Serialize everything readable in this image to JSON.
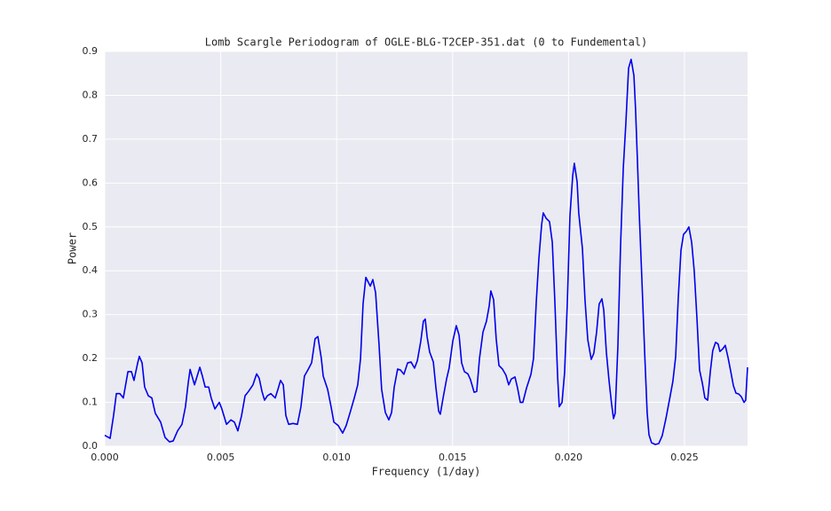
{
  "chart_data": {
    "type": "line",
    "title": "Lomb Scargle Periodogram of OGLE-BLG-T2CEP-351.dat (0 to Fundemental)",
    "xlabel": "Frequency (1/day)",
    "ylabel": "Power",
    "color": "#0000ee",
    "grid": true,
    "xlim": [
      0,
      0.02772
    ],
    "ylim": [
      0,
      0.9
    ],
    "xticks": [
      {
        "value": 0,
        "label": "0.000"
      },
      {
        "value": 0.005,
        "label": "0.005"
      },
      {
        "value": 0.01,
        "label": "0.010"
      },
      {
        "value": 0.015,
        "label": "0.015"
      },
      {
        "value": 0.02,
        "label": "0.020"
      },
      {
        "value": 0.025,
        "label": "0.025"
      }
    ],
    "yticks": [
      {
        "value": 0,
        "label": "0.0"
      },
      0.1,
      0.2,
      0.3,
      0.4,
      0.5,
      0.6,
      0.7,
      0.8,
      0.9
    ],
    "x": [
      0,
      0.00023,
      0.00038,
      0.0005,
      0.00065,
      0.0008,
      0.001,
      0.00115,
      0.00126,
      0.00142,
      0.00149,
      0.00161,
      0.00172,
      0.00188,
      0.00203,
      0.00218,
      0.00241,
      0.0026,
      0.00279,
      0.00295,
      0.00314,
      0.00333,
      0.00348,
      0.0036,
      0.00368,
      0.00387,
      0.0041,
      0.00421,
      0.00433,
      0.00448,
      0.00459,
      0.00475,
      0.00494,
      0.00505,
      0.00525,
      0.00544,
      0.00559,
      0.00574,
      0.0059,
      0.00605,
      0.0062,
      0.00639,
      0.00655,
      0.00666,
      0.00678,
      0.00689,
      0.00701,
      0.00716,
      0.00735,
      0.00747,
      0.00758,
      0.0077,
      0.00781,
      0.00793,
      0.00812,
      0.00831,
      0.00846,
      0.00861,
      0.00877,
      0.00892,
      0.00907,
      0.00919,
      0.00934,
      0.00942,
      0.00961,
      0.00976,
      0.00988,
      0.01007,
      0.01026,
      0.01041,
      0.01057,
      0.01076,
      0.01091,
      0.01103,
      0.01114,
      0.01126,
      0.01145,
      0.01156,
      0.01168,
      0.01183,
      0.01194,
      0.0121,
      0.01225,
      0.01237,
      0.01248,
      0.01263,
      0.01275,
      0.0129,
      0.01306,
      0.01321,
      0.01336,
      0.01348,
      0.01363,
      0.01374,
      0.01382,
      0.0139,
      0.01401,
      0.01417,
      0.01428,
      0.0144,
      0.01447,
      0.01459,
      0.01474,
      0.01485,
      0.01501,
      0.01516,
      0.01528,
      0.01539,
      0.01551,
      0.01566,
      0.01577,
      0.01593,
      0.01604,
      0.01616,
      0.01631,
      0.01646,
      0.01658,
      0.01665,
      0.01677,
      0.01688,
      0.017,
      0.01715,
      0.0173,
      0.01742,
      0.01753,
      0.01769,
      0.0178,
      0.01792,
      0.01803,
      0.01819,
      0.01838,
      0.01849,
      0.01861,
      0.01872,
      0.01884,
      0.01891,
      0.01903,
      0.01918,
      0.0193,
      0.01941,
      0.01953,
      0.0196,
      0.01972,
      0.01983,
      0.01995,
      0.02006,
      0.02018,
      0.02025,
      0.02037,
      0.02044,
      0.0206,
      0.02071,
      0.02083,
      0.02098,
      0.02109,
      0.02121,
      0.02132,
      0.02144,
      0.02152,
      0.02163,
      0.02175,
      0.02186,
      0.02194,
      0.02201,
      0.02213,
      0.02224,
      0.02236,
      0.02247,
      0.02259,
      0.0227,
      0.02282,
      0.02289,
      0.02297,
      0.02305,
      0.02316,
      0.02328,
      0.02339,
      0.02347,
      0.02358,
      0.02374,
      0.02389,
      0.02404,
      0.0242,
      0.02435,
      0.0245,
      0.02462,
      0.02473,
      0.02485,
      0.02496,
      0.02508,
      0.02519,
      0.02531,
      0.02542,
      0.02554,
      0.02565,
      0.02577,
      0.02588,
      0.026,
      0.02611,
      0.02622,
      0.02634,
      0.02645,
      0.02653,
      0.02665,
      0.02676,
      0.02688,
      0.02699,
      0.02711,
      0.02722,
      0.02734,
      0.02745,
      0.02757,
      0.02764,
      0.02772
    ],
    "values": [
      0.025,
      0.018,
      0.07,
      0.12,
      0.12,
      0.11,
      0.17,
      0.17,
      0.15,
      0.19,
      0.205,
      0.19,
      0.135,
      0.115,
      0.11,
      0.075,
      0.055,
      0.02,
      0.01,
      0.012,
      0.035,
      0.05,
      0.09,
      0.145,
      0.175,
      0.14,
      0.18,
      0.16,
      0.135,
      0.135,
      0.11,
      0.085,
      0.1,
      0.085,
      0.05,
      0.06,
      0.055,
      0.035,
      0.07,
      0.115,
      0.125,
      0.14,
      0.165,
      0.155,
      0.125,
      0.105,
      0.115,
      0.12,
      0.11,
      0.13,
      0.15,
      0.14,
      0.07,
      0.05,
      0.052,
      0.05,
      0.09,
      0.16,
      0.175,
      0.19,
      0.245,
      0.25,
      0.2,
      0.16,
      0.13,
      0.09,
      0.055,
      0.047,
      0.03,
      0.047,
      0.075,
      0.11,
      0.14,
      0.2,
      0.325,
      0.385,
      0.365,
      0.38,
      0.35,
      0.23,
      0.13,
      0.077,
      0.06,
      0.077,
      0.134,
      0.176,
      0.174,
      0.164,
      0.19,
      0.192,
      0.178,
      0.195,
      0.24,
      0.285,
      0.29,
      0.25,
      0.215,
      0.192,
      0.134,
      0.08,
      0.073,
      0.11,
      0.153,
      0.178,
      0.24,
      0.275,
      0.253,
      0.19,
      0.17,
      0.165,
      0.152,
      0.123,
      0.125,
      0.2,
      0.26,
      0.285,
      0.32,
      0.354,
      0.334,
      0.245,
      0.184,
      0.176,
      0.162,
      0.14,
      0.153,
      0.158,
      0.133,
      0.1,
      0.1,
      0.133,
      0.164,
      0.2,
      0.33,
      0.427,
      0.505,
      0.532,
      0.52,
      0.512,
      0.465,
      0.33,
      0.158,
      0.09,
      0.1,
      0.168,
      0.33,
      0.524,
      0.617,
      0.645,
      0.603,
      0.532,
      0.45,
      0.334,
      0.243,
      0.198,
      0.212,
      0.26,
      0.324,
      0.336,
      0.31,
      0.215,
      0.148,
      0.095,
      0.063,
      0.075,
      0.23,
      0.45,
      0.633,
      0.734,
      0.862,
      0.882,
      0.845,
      0.769,
      0.653,
      0.53,
      0.385,
      0.218,
      0.077,
      0.026,
      0.008,
      0.004,
      0.006,
      0.024,
      0.063,
      0.105,
      0.148,
      0.204,
      0.336,
      0.447,
      0.483,
      0.49,
      0.5,
      0.465,
      0.4,
      0.29,
      0.174,
      0.144,
      0.11,
      0.105,
      0.168,
      0.218,
      0.237,
      0.233,
      0.216,
      0.222,
      0.23,
      0.202,
      0.172,
      0.138,
      0.121,
      0.119,
      0.113,
      0.1,
      0.105,
      0.18
    ]
  }
}
